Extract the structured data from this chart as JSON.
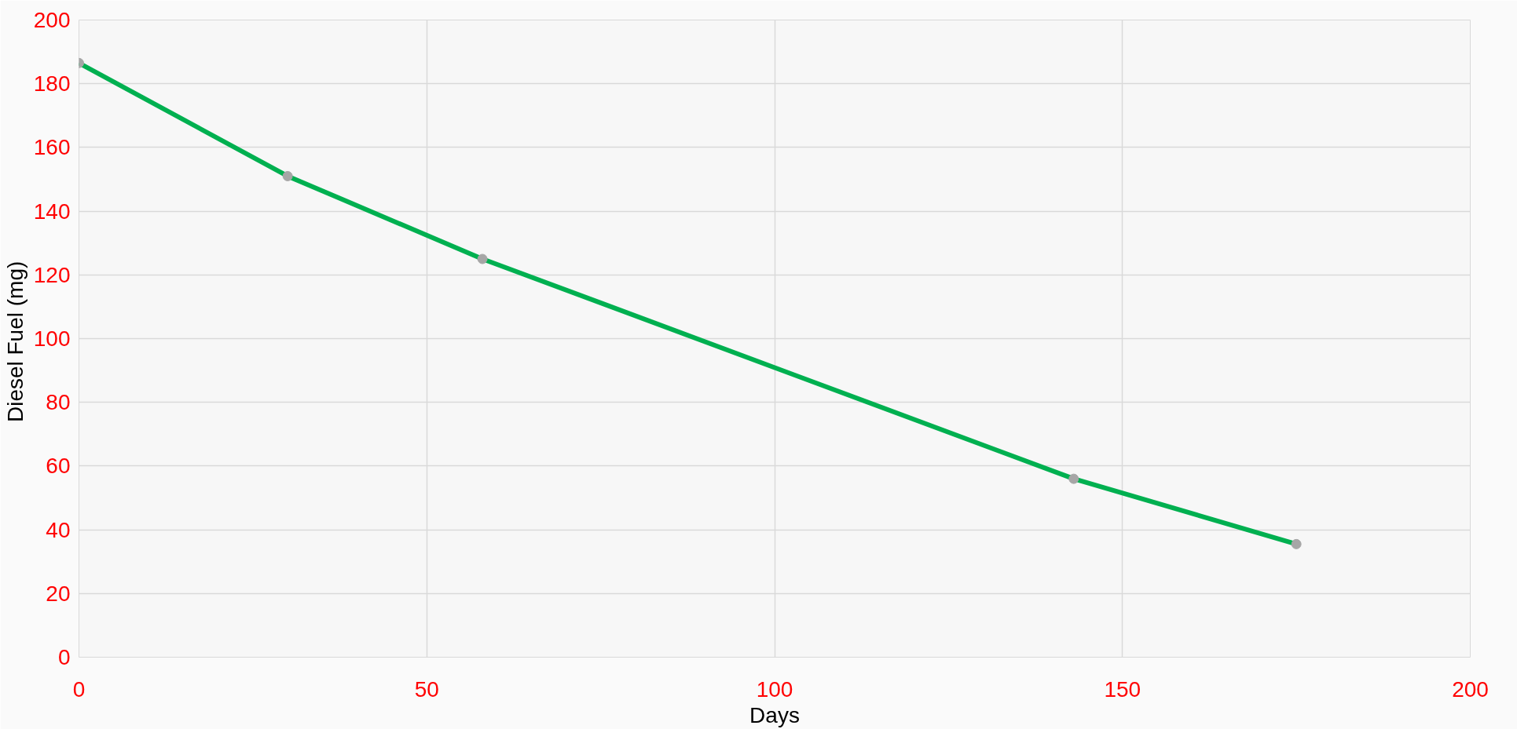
{
  "chart_data": {
    "type": "line",
    "xlabel": "Days",
    "ylabel": "Diesel Fuel  (mg)",
    "x": [
      0,
      30,
      58,
      143,
      175
    ],
    "series": [
      {
        "color": "#00b050",
        "values": [
          186.5,
          151,
          125,
          56,
          35.5
        ]
      }
    ],
    "xlim": [
      0,
      200
    ],
    "xticks": [
      0,
      50,
      100,
      150,
      200
    ],
    "ylim": [
      0,
      200
    ],
    "yticks": [
      0,
      20,
      40,
      60,
      80,
      100,
      120,
      140,
      160,
      180,
      200
    ],
    "grid": true,
    "marker": "circle",
    "line_style": "solid"
  }
}
